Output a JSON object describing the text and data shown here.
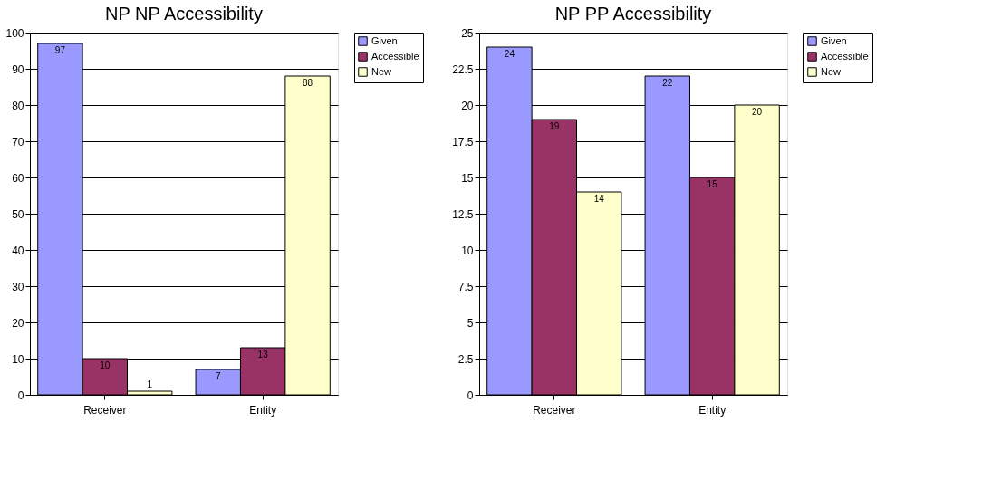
{
  "chart_data": [
    {
      "type": "bar",
      "title": "NP NP Accessibility",
      "categories": [
        "Receiver",
        "Entity"
      ],
      "series": [
        {
          "name": "Given",
          "color": "#9999ff",
          "values": [
            97,
            7
          ]
        },
        {
          "name": "Accessible",
          "color": "#993366",
          "values": [
            10,
            13
          ]
        },
        {
          "name": "New",
          "color": "#ffffcc",
          "values": [
            1,
            88
          ]
        }
      ],
      "ylim": [
        0,
        100
      ],
      "yticks": [
        0,
        10,
        20,
        30,
        40,
        50,
        60,
        70,
        80,
        90,
        100
      ],
      "grid": "y",
      "legend": "right",
      "data_labels": true
    },
    {
      "type": "bar",
      "title": "NP PP Accessibility",
      "categories": [
        "Receiver",
        "Entity"
      ],
      "series": [
        {
          "name": "Given",
          "color": "#9999ff",
          "values": [
            24,
            22
          ]
        },
        {
          "name": "Accessible",
          "color": "#993366",
          "values": [
            19,
            15
          ]
        },
        {
          "name": "New",
          "color": "#ffffcc",
          "values": [
            14,
            20
          ]
        }
      ],
      "ylim": [
        0,
        25
      ],
      "yticks": [
        0,
        2.5,
        5,
        7.5,
        10,
        12.5,
        15,
        17.5,
        20,
        22.5,
        25
      ],
      "grid": "y",
      "legend": "right",
      "data_labels": true
    }
  ]
}
